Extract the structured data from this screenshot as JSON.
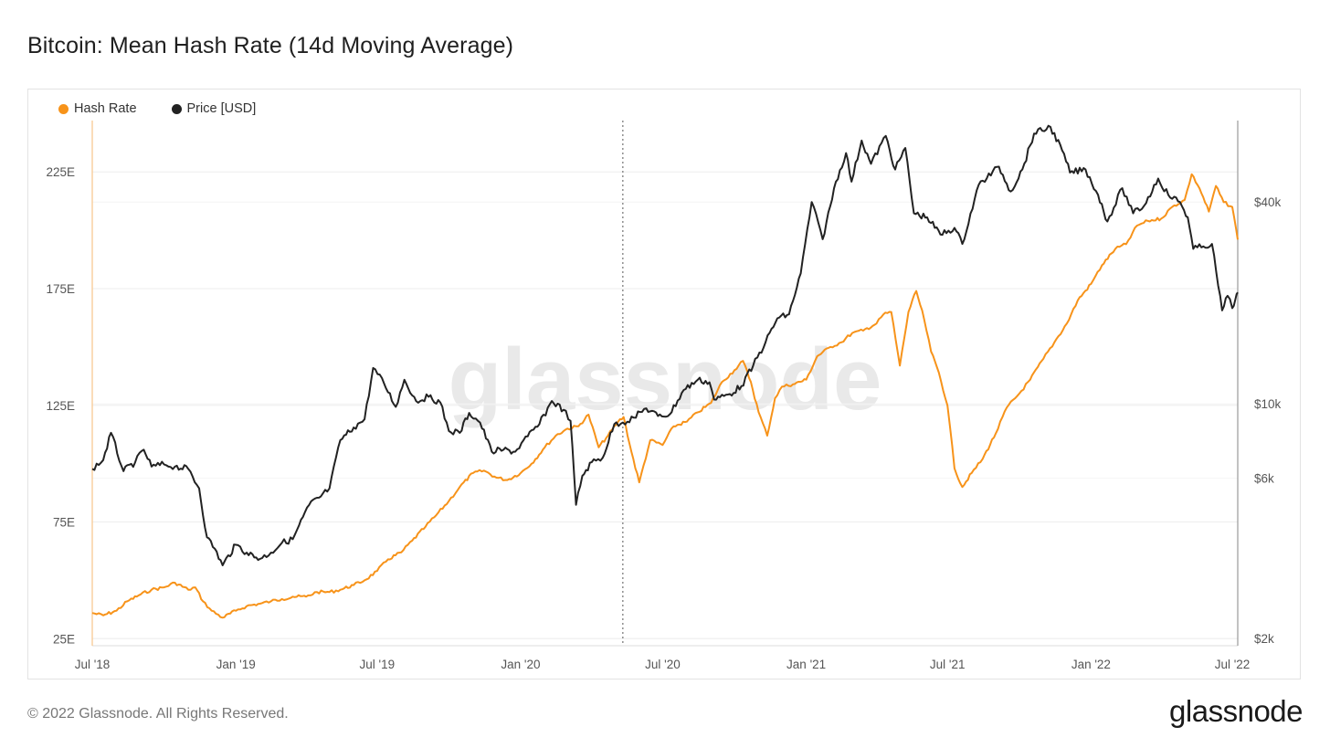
{
  "title": "Bitcoin: Mean Hash Rate (14d Moving Average)",
  "footer": "© 2022 Glassnode. All Rights Reserved.",
  "brand": "glassnode",
  "watermark": "glassnode",
  "colors": {
    "hash_rate": "#f7931a",
    "price": "#222222",
    "grid": "#eeeeee"
  },
  "chart_data": {
    "type": "line",
    "title": "Bitcoin: Mean Hash Rate (14d Moving Average)",
    "legend_position": "top-left",
    "grid": true,
    "x_range": [
      "2018-07-01",
      "2022-07-08"
    ],
    "x_ticks": [
      "Jul '18",
      "Jan '19",
      "Jul '19",
      "Jan '20",
      "Jul '20",
      "Jan '21",
      "Jul '21",
      "Jan '22",
      "Jul '22"
    ],
    "x_tick_dates": [
      "2018-07-01",
      "2019-01-01",
      "2019-07-01",
      "2020-01-01",
      "2020-07-01",
      "2021-01-01",
      "2021-07-01",
      "2022-01-01",
      "2022-07-01"
    ],
    "y_left": {
      "label": "",
      "ticks": [
        "25E",
        "75E",
        "125E",
        "175E",
        "225E"
      ],
      "tick_values": [
        25,
        75,
        125,
        175,
        225
      ],
      "range": [
        22,
        247
      ]
    },
    "y_right": {
      "label": "",
      "scale": "log",
      "ticks": [
        "$2k",
        "$6k",
        "$10k",
        "$40k"
      ],
      "tick_values": [
        2000,
        6000,
        10000,
        40000
      ],
      "range": [
        1900,
        70000
      ]
    },
    "vertical_marker": "2020-05-11",
    "series": [
      {
        "name": "Hash Rate",
        "axis": "left",
        "color": "#f7931a",
        "points": [
          [
            "2018-07-01",
            36
          ],
          [
            "2018-07-15",
            35
          ],
          [
            "2018-08-01",
            37
          ],
          [
            "2018-08-15",
            41
          ],
          [
            "2018-09-01",
            44
          ],
          [
            "2018-09-15",
            46
          ],
          [
            "2018-10-01",
            47
          ],
          [
            "2018-10-15",
            49
          ],
          [
            "2018-11-01",
            46
          ],
          [
            "2018-11-10",
            47
          ],
          [
            "2018-11-20",
            41
          ],
          [
            "2018-12-01",
            37
          ],
          [
            "2018-12-15",
            34
          ],
          [
            "2019-01-01",
            37
          ],
          [
            "2019-01-15",
            39
          ],
          [
            "2019-02-01",
            40
          ],
          [
            "2019-02-15",
            41
          ],
          [
            "2019-03-01",
            42
          ],
          [
            "2019-03-15",
            43
          ],
          [
            "2019-04-01",
            43
          ],
          [
            "2019-04-15",
            45
          ],
          [
            "2019-05-01",
            45
          ],
          [
            "2019-05-15",
            46
          ],
          [
            "2019-06-01",
            48
          ],
          [
            "2019-06-15",
            50
          ],
          [
            "2019-07-01",
            54
          ],
          [
            "2019-07-15",
            59
          ],
          [
            "2019-08-01",
            62
          ],
          [
            "2019-08-15",
            67
          ],
          [
            "2019-09-01",
            73
          ],
          [
            "2019-09-15",
            78
          ],
          [
            "2019-10-01",
            84
          ],
          [
            "2019-10-15",
            90
          ],
          [
            "2019-11-01",
            96
          ],
          [
            "2019-11-15",
            97
          ],
          [
            "2019-12-01",
            94
          ],
          [
            "2019-12-15",
            93
          ],
          [
            "2020-01-01",
            96
          ],
          [
            "2020-01-15",
            100
          ],
          [
            "2020-02-01",
            107
          ],
          [
            "2020-02-15",
            112
          ],
          [
            "2020-03-01",
            115
          ],
          [
            "2020-03-15",
            116
          ],
          [
            "2020-03-28",
            121
          ],
          [
            "2020-04-10",
            107
          ],
          [
            "2020-04-22",
            112
          ],
          [
            "2020-05-05",
            118
          ],
          [
            "2020-05-12",
            120
          ],
          [
            "2020-05-22",
            105
          ],
          [
            "2020-06-01",
            92
          ],
          [
            "2020-06-15",
            110
          ],
          [
            "2020-07-01",
            108
          ],
          [
            "2020-07-15",
            116
          ],
          [
            "2020-08-01",
            118
          ],
          [
            "2020-08-15",
            122
          ],
          [
            "2020-09-01",
            126
          ],
          [
            "2020-09-15",
            135
          ],
          [
            "2020-10-01",
            140
          ],
          [
            "2020-10-12",
            144
          ],
          [
            "2020-10-22",
            135
          ],
          [
            "2020-11-01",
            122
          ],
          [
            "2020-11-12",
            112
          ],
          [
            "2020-11-22",
            128
          ],
          [
            "2020-12-01",
            133
          ],
          [
            "2020-12-15",
            134
          ],
          [
            "2021-01-01",
            136
          ],
          [
            "2021-01-15",
            146
          ],
          [
            "2021-02-01",
            150
          ],
          [
            "2021-02-15",
            152
          ],
          [
            "2021-03-01",
            156
          ],
          [
            "2021-03-15",
            157
          ],
          [
            "2021-04-01",
            160
          ],
          [
            "2021-04-10",
            164
          ],
          [
            "2021-04-20",
            165
          ],
          [
            "2021-05-01",
            142
          ],
          [
            "2021-05-12",
            165
          ],
          [
            "2021-05-22",
            174
          ],
          [
            "2021-06-01",
            162
          ],
          [
            "2021-06-10",
            148
          ],
          [
            "2021-06-20",
            139
          ],
          [
            "2021-07-01",
            125
          ],
          [
            "2021-07-10",
            98
          ],
          [
            "2021-07-20",
            90
          ],
          [
            "2021-08-01",
            96
          ],
          [
            "2021-08-15",
            102
          ],
          [
            "2021-09-01",
            113
          ],
          [
            "2021-09-15",
            124
          ],
          [
            "2021-10-01",
            130
          ],
          [
            "2021-10-15",
            136
          ],
          [
            "2021-11-01",
            145
          ],
          [
            "2021-11-15",
            152
          ],
          [
            "2021-12-01",
            160
          ],
          [
            "2021-12-15",
            170
          ],
          [
            "2022-01-01",
            177
          ],
          [
            "2022-01-15",
            185
          ],
          [
            "2022-02-01",
            192
          ],
          [
            "2022-02-15",
            194
          ],
          [
            "2022-03-01",
            202
          ],
          [
            "2022-03-15",
            204
          ],
          [
            "2022-04-01",
            205
          ],
          [
            "2022-04-15",
            210
          ],
          [
            "2022-05-01",
            213
          ],
          [
            "2022-05-10",
            224
          ],
          [
            "2022-05-20",
            218
          ],
          [
            "2022-06-01",
            208
          ],
          [
            "2022-06-10",
            219
          ],
          [
            "2022-06-20",
            212
          ],
          [
            "2022-07-01",
            210
          ],
          [
            "2022-07-08",
            196
          ]
        ]
      },
      {
        "name": "Price [USD]",
        "axis": "right",
        "color": "#222222",
        "points": [
          [
            "2018-07-01",
            6400
          ],
          [
            "2018-07-15",
            6800
          ],
          [
            "2018-07-25",
            8200
          ],
          [
            "2018-08-10",
            6300
          ],
          [
            "2018-08-25",
            6700
          ],
          [
            "2018-09-05",
            7300
          ],
          [
            "2018-09-15",
            6500
          ],
          [
            "2018-10-01",
            6600
          ],
          [
            "2018-10-15",
            6500
          ],
          [
            "2018-11-01",
            6400
          ],
          [
            "2018-11-15",
            5600
          ],
          [
            "2018-11-25",
            4000
          ],
          [
            "2018-12-05",
            3700
          ],
          [
            "2018-12-15",
            3300
          ],
          [
            "2019-01-01",
            3800
          ],
          [
            "2019-01-15",
            3600
          ],
          [
            "2019-02-01",
            3450
          ],
          [
            "2019-02-15",
            3600
          ],
          [
            "2019-03-01",
            3850
          ],
          [
            "2019-03-15",
            3950
          ],
          [
            "2019-04-05",
            5000
          ],
          [
            "2019-04-20",
            5300
          ],
          [
            "2019-05-01",
            5600
          ],
          [
            "2019-05-15",
            7800
          ],
          [
            "2019-06-01",
            8500
          ],
          [
            "2019-06-15",
            9000
          ],
          [
            "2019-06-26",
            12800
          ],
          [
            "2019-07-10",
            11500
          ],
          [
            "2019-07-25",
            9800
          ],
          [
            "2019-08-05",
            11800
          ],
          [
            "2019-08-20",
            10200
          ],
          [
            "2019-09-05",
            10500
          ],
          [
            "2019-09-20",
            10100
          ],
          [
            "2019-10-01",
            8300
          ],
          [
            "2019-10-15",
            8200
          ],
          [
            "2019-10-27",
            9400
          ],
          [
            "2019-11-10",
            8800
          ],
          [
            "2019-11-25",
            7200
          ],
          [
            "2019-12-10",
            7300
          ],
          [
            "2019-12-25",
            7200
          ],
          [
            "2020-01-10",
            8000
          ],
          [
            "2020-01-25",
            8700
          ],
          [
            "2020-02-10",
            10200
          ],
          [
            "2020-02-25",
            9600
          ],
          [
            "2020-03-05",
            8900
          ],
          [
            "2020-03-12",
            5000
          ],
          [
            "2020-03-20",
            6100
          ],
          [
            "2020-04-01",
            6700
          ],
          [
            "2020-04-15",
            6900
          ],
          [
            "2020-04-30",
            8700
          ],
          [
            "2020-05-11",
            8800
          ],
          [
            "2020-05-25",
            9100
          ],
          [
            "2020-06-10",
            9700
          ],
          [
            "2020-06-25",
            9200
          ],
          [
            "2020-07-10",
            9300
          ],
          [
            "2020-07-28",
            11000
          ],
          [
            "2020-08-15",
            11800
          ],
          [
            "2020-08-30",
            11600
          ],
          [
            "2020-09-05",
            10300
          ],
          [
            "2020-09-25",
            10700
          ],
          [
            "2020-10-10",
            11300
          ],
          [
            "2020-10-25",
            13000
          ],
          [
            "2020-11-10",
            15300
          ],
          [
            "2020-11-25",
            18000
          ],
          [
            "2020-12-10",
            18500
          ],
          [
            "2020-12-25",
            24500
          ],
          [
            "2021-01-08",
            40000
          ],
          [
            "2021-01-22",
            31000
          ],
          [
            "2021-02-08",
            46000
          ],
          [
            "2021-02-21",
            56000
          ],
          [
            "2021-02-28",
            46000
          ],
          [
            "2021-03-13",
            61000
          ],
          [
            "2021-03-25",
            52000
          ],
          [
            "2021-04-13",
            63000
          ],
          [
            "2021-04-25",
            50000
          ],
          [
            "2021-05-08",
            58000
          ],
          [
            "2021-05-19",
            37000
          ],
          [
            "2021-06-05",
            36000
          ],
          [
            "2021-06-22",
            32000
          ],
          [
            "2021-07-10",
            33500
          ],
          [
            "2021-07-20",
            30000
          ],
          [
            "2021-08-10",
            45000
          ],
          [
            "2021-09-05",
            51000
          ],
          [
            "2021-09-20",
            43000
          ],
          [
            "2021-10-05",
            50000
          ],
          [
            "2021-10-20",
            64000
          ],
          [
            "2021-11-10",
            67000
          ],
          [
            "2021-11-25",
            57000
          ],
          [
            "2021-12-05",
            49000
          ],
          [
            "2021-12-25",
            50000
          ],
          [
            "2022-01-10",
            42000
          ],
          [
            "2022-01-22",
            35000
          ],
          [
            "2022-02-10",
            44000
          ],
          [
            "2022-02-24",
            37000
          ],
          [
            "2022-03-10",
            39000
          ],
          [
            "2022-03-28",
            47000
          ],
          [
            "2022-04-10",
            42000
          ],
          [
            "2022-04-25",
            40000
          ],
          [
            "2022-05-05",
            36000
          ],
          [
            "2022-05-12",
            29000
          ],
          [
            "2022-05-25",
            29500
          ],
          [
            "2022-06-05",
            30000
          ],
          [
            "2022-06-13",
            22500
          ],
          [
            "2022-06-18",
            19000
          ],
          [
            "2022-06-25",
            21000
          ],
          [
            "2022-07-01",
            19300
          ],
          [
            "2022-07-05",
            20500
          ],
          [
            "2022-07-08",
            21500
          ]
        ]
      }
    ]
  }
}
